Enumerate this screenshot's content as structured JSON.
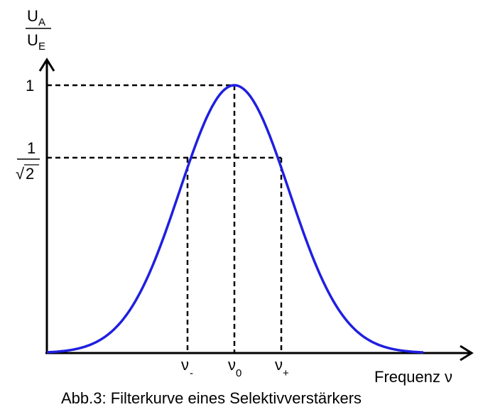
{
  "y_axis": {
    "fraction": {
      "numerator": {
        "base": "U",
        "sub": "A"
      },
      "denominator": {
        "base": "U",
        "sub": "E"
      }
    }
  },
  "tick_labels": {
    "one": "1",
    "inv_sqrt2": {
      "numerator": "1",
      "radical": "√",
      "radicand": "2"
    }
  },
  "x_marks": {
    "nu_minus": {
      "symbol": "ν",
      "sub": "-"
    },
    "nu_zero": {
      "symbol": "ν",
      "sub": "0"
    },
    "nu_plus": {
      "symbol": "ν",
      "sub": "+"
    }
  },
  "x_axis_label": "Frequenz ν",
  "caption": "Abb.3:   Filterkurve eines Selektivverstärkers",
  "colors": {
    "curve": "#1f1fe0",
    "axes": "#000000",
    "guides": "#000000"
  }
}
